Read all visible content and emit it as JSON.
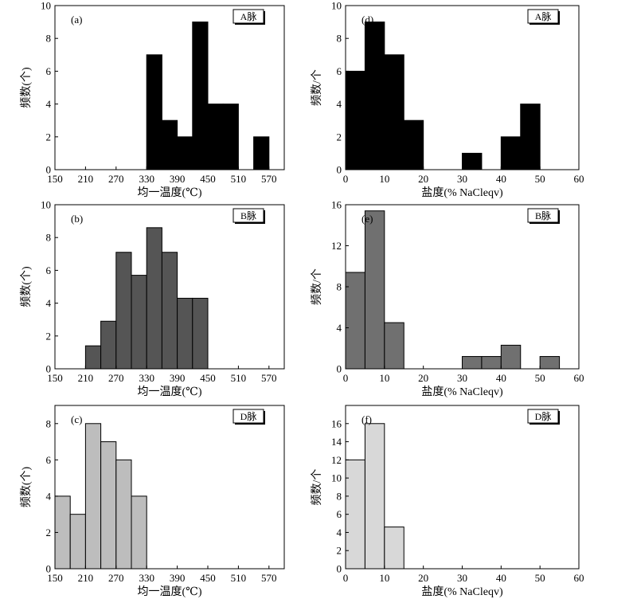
{
  "chart_data": [
    {
      "id": "a",
      "type": "histogram",
      "panel_label": "(a)",
      "vein_tag": "A脉",
      "xlabel": "均一温度(℃)",
      "ylabel": "频数(个)",
      "xlim": [
        150,
        600
      ],
      "ylim": [
        0,
        10
      ],
      "xticks": [
        150,
        210,
        270,
        330,
        390,
        450,
        510,
        570
      ],
      "yticks": [
        0,
        2,
        4,
        6,
        8,
        10
      ],
      "bar_color": "#000000",
      "bins": [
        {
          "from": 330,
          "to": 360,
          "count": 7
        },
        {
          "from": 360,
          "to": 390,
          "count": 3
        },
        {
          "from": 390,
          "to": 420,
          "count": 2
        },
        {
          "from": 420,
          "to": 450,
          "count": 9
        },
        {
          "from": 450,
          "to": 480,
          "count": 4
        },
        {
          "from": 480,
          "to": 510,
          "count": 4
        },
        {
          "from": 540,
          "to": 570,
          "count": 2
        }
      ]
    },
    {
      "id": "d",
      "type": "histogram",
      "panel_label": "(d)",
      "vein_tag": "A脉",
      "xlabel": "盐度(% NaCleqv)",
      "ylabel": "频数/个",
      "xlim": [
        0,
        60
      ],
      "ylim": [
        0,
        10
      ],
      "xticks": [
        0,
        10,
        20,
        30,
        40,
        50,
        60
      ],
      "yticks": [
        0,
        2,
        4,
        6,
        8,
        10
      ],
      "bar_color": "#000000",
      "bins": [
        {
          "from": 0,
          "to": 5,
          "count": 6
        },
        {
          "from": 5,
          "to": 10,
          "count": 9
        },
        {
          "from": 10,
          "to": 15,
          "count": 7
        },
        {
          "from": 15,
          "to": 20,
          "count": 3
        },
        {
          "from": 30,
          "to": 35,
          "count": 1
        },
        {
          "from": 40,
          "to": 45,
          "count": 2
        },
        {
          "from": 45,
          "to": 50,
          "count": 4
        }
      ]
    },
    {
      "id": "b",
      "type": "histogram",
      "panel_label": "(b)",
      "vein_tag": "B脉",
      "xlabel": "均一温度(℃)",
      "ylabel": "频数(个)",
      "xlim": [
        150,
        600
      ],
      "ylim": [
        0,
        10
      ],
      "xticks": [
        150,
        210,
        270,
        330,
        390,
        450,
        510,
        570
      ],
      "yticks": [
        0,
        2,
        4,
        6,
        8,
        10
      ],
      "bar_color": "#555555",
      "bins": [
        {
          "from": 210,
          "to": 240,
          "count": 1.4
        },
        {
          "from": 240,
          "to": 270,
          "count": 2.9
        },
        {
          "from": 270,
          "to": 300,
          "count": 7.1
        },
        {
          "from": 300,
          "to": 330,
          "count": 5.7
        },
        {
          "from": 330,
          "to": 360,
          "count": 8.6
        },
        {
          "from": 360,
          "to": 390,
          "count": 7.1
        },
        {
          "from": 390,
          "to": 420,
          "count": 4.3
        },
        {
          "from": 420,
          "to": 450,
          "count": 4.3
        }
      ]
    },
    {
      "id": "e",
      "type": "histogram",
      "panel_label": "(e)",
      "vein_tag": "B脉",
      "xlabel": "盐度(% NaCleqv)",
      "ylabel": "频数/个",
      "xlim": [
        0,
        60
      ],
      "ylim": [
        0,
        16
      ],
      "xticks": [
        0,
        10,
        20,
        30,
        40,
        50,
        60
      ],
      "yticks": [
        0,
        4,
        8,
        12,
        16
      ],
      "bar_color": "#707070",
      "bins": [
        {
          "from": 0,
          "to": 5,
          "count": 9.4
        },
        {
          "from": 5,
          "to": 10,
          "count": 15.4
        },
        {
          "from": 10,
          "to": 15,
          "count": 4.5
        },
        {
          "from": 30,
          "to": 35,
          "count": 1.2
        },
        {
          "from": 35,
          "to": 40,
          "count": 1.2
        },
        {
          "from": 40,
          "to": 45,
          "count": 2.3
        },
        {
          "from": 50,
          "to": 55,
          "count": 1.2
        }
      ]
    },
    {
      "id": "c",
      "type": "histogram",
      "panel_label": "(c)",
      "vein_tag": "D脉",
      "xlabel": "均一温度(℃)",
      "ylabel": "频数(个)",
      "xlim": [
        150,
        600
      ],
      "ylim": [
        0,
        9
      ],
      "xticks": [
        150,
        210,
        270,
        330,
        390,
        450,
        510,
        570
      ],
      "yticks": [
        0,
        2,
        4,
        6,
        8
      ],
      "bar_color": "#bdbdbd",
      "bins": [
        {
          "from": 150,
          "to": 180,
          "count": 4
        },
        {
          "from": 180,
          "to": 210,
          "count": 3
        },
        {
          "from": 210,
          "to": 240,
          "count": 8
        },
        {
          "from": 240,
          "to": 270,
          "count": 7
        },
        {
          "from": 270,
          "to": 300,
          "count": 6
        },
        {
          "from": 300,
          "to": 330,
          "count": 4
        }
      ]
    },
    {
      "id": "f",
      "type": "histogram",
      "panel_label": "(f)",
      "vein_tag": "D脉",
      "xlabel": "盐度(% NaCleqv)",
      "ylabel": "频数/个",
      "xlim": [
        0,
        60
      ],
      "ylim": [
        0,
        18
      ],
      "xticks": [
        0,
        10,
        20,
        30,
        40,
        50,
        60
      ],
      "yticks": [
        0,
        2,
        4,
        6,
        8,
        10,
        12,
        14,
        16
      ],
      "bar_color": "#d8d8d8",
      "bins": [
        {
          "from": 0,
          "to": 5,
          "count": 12
        },
        {
          "from": 5,
          "to": 10,
          "count": 16
        },
        {
          "from": 10,
          "to": 15,
          "count": 4.6
        }
      ]
    }
  ]
}
